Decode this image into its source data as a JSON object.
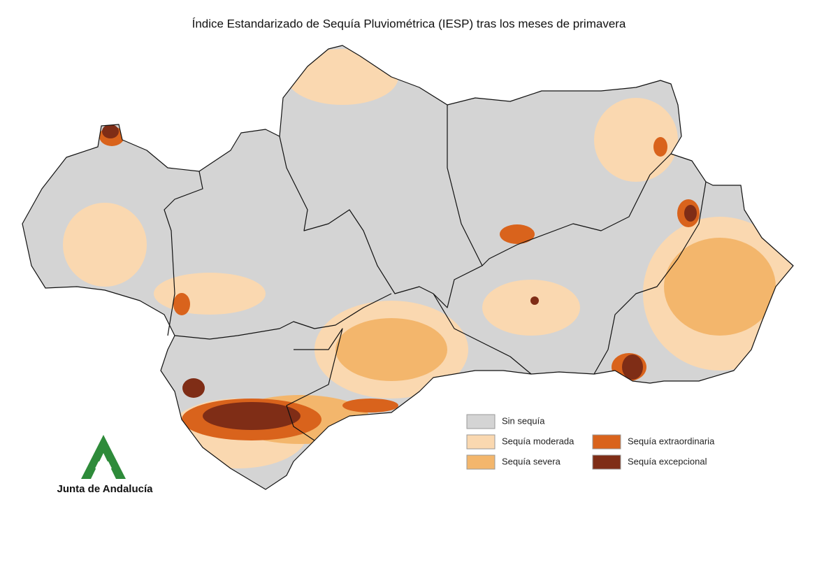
{
  "title": "Índice Estandarizado de Sequía Pluviométrica (IESP) tras los meses de primavera",
  "legend": [
    {
      "label": "Sin sequía",
      "color": "#d4d4d4"
    },
    {
      "label": "Sequía moderada",
      "color": "#fad8b0"
    },
    {
      "label": "Sequía severa",
      "color": "#f3b66c"
    },
    {
      "label": "Sequía extraordinaria",
      "color": "#d9631c"
    },
    {
      "label": "Sequía excepcional",
      "color": "#7f2d16"
    }
  ],
  "logo": {
    "text": "Junta de Andalucía"
  }
}
